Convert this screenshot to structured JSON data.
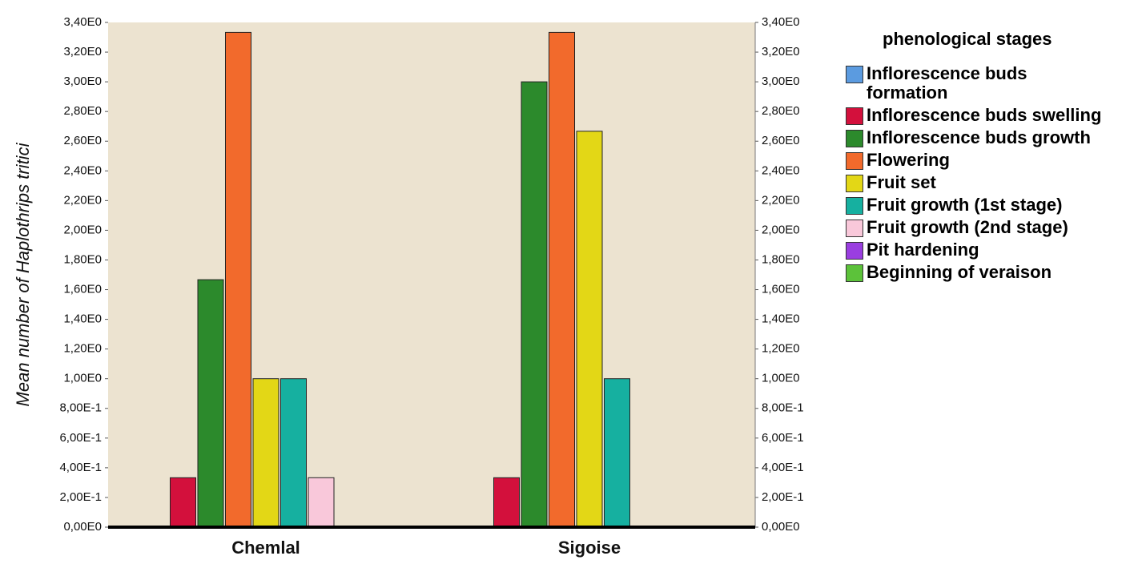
{
  "chart_data": {
    "type": "bar",
    "y_label": "Mean number of Haplothrips tritici",
    "legend_title": "phenological stages",
    "legend": "right",
    "categories": [
      "Chemlal",
      "Sigoise"
    ],
    "ylim": [
      0,
      3.4
    ],
    "yticks": [
      {
        "value": 0,
        "label": "0,00E0"
      },
      {
        "value": 0.2,
        "label": "2,00E-1"
      },
      {
        "value": 0.4,
        "label": "4,00E-1"
      },
      {
        "value": 0.6,
        "label": "6,00E-1"
      },
      {
        "value": 0.8,
        "label": "8,00E-1"
      },
      {
        "value": 1,
        "label": "1,00E0"
      },
      {
        "value": 1.2,
        "label": "1,20E0"
      },
      {
        "value": 1.4,
        "label": "1,40E0"
      },
      {
        "value": 1.6,
        "label": "1,60E0"
      },
      {
        "value": 1.8,
        "label": "1,80E0"
      },
      {
        "value": 2,
        "label": "2,00E0"
      },
      {
        "value": 2.2,
        "label": "2,20E0"
      },
      {
        "value": 2.4,
        "label": "2,40E0"
      },
      {
        "value": 2.6,
        "label": "2,60E0"
      },
      {
        "value": 2.8,
        "label": "2,80E0"
      },
      {
        "value": 3,
        "label": "3,00E0"
      },
      {
        "value": 3.2,
        "label": "3,20E0"
      },
      {
        "value": 3.4,
        "label": "3,40E0"
      }
    ],
    "y2lim": [
      0,
      3.4
    ],
    "y2ticks": [
      {
        "value": 0,
        "label": "0,00E0"
      },
      {
        "value": 0.2,
        "label": "2,00E-1"
      },
      {
        "value": 0.4,
        "label": "4,00E-1"
      },
      {
        "value": 0.6,
        "label": "6,00E-1"
      },
      {
        "value": 0.8,
        "label": "8,00E-1"
      },
      {
        "value": 1,
        "label": "1,00E0"
      },
      {
        "value": 1.2,
        "label": "1,20E0"
      },
      {
        "value": 1.4,
        "label": "1,40E0"
      },
      {
        "value": 1.6,
        "label": "1,60E0"
      },
      {
        "value": 1.8,
        "label": "1,80E0"
      },
      {
        "value": 2,
        "label": "2,00E0"
      },
      {
        "value": 2.2,
        "label": "2,20E0"
      },
      {
        "value": 2.4,
        "label": "2,40E0"
      },
      {
        "value": 2.6,
        "label": "2,60E0"
      },
      {
        "value": 2.8,
        "label": "2,80E0"
      },
      {
        "value": 3,
        "label": "3,00E0"
      },
      {
        "value": 3.2,
        "label": "3,20E0"
      },
      {
        "value": 3.4,
        "label": "3,40E0"
      }
    ],
    "series": [
      {
        "name": "Inflorescence buds formation",
        "color": "#5b9be0",
        "values": [
          0,
          0
        ]
      },
      {
        "name": "Inflorescence buds swelling",
        "color": "#d3103c",
        "values": [
          0.333,
          0.333
        ]
      },
      {
        "name": "Inflorescence buds growth",
        "color": "#2c8a2c",
        "values": [
          1.667,
          3.0
        ]
      },
      {
        "name": "Flowering",
        "color": "#f26a2c",
        "values": [
          3.333,
          3.333
        ]
      },
      {
        "name": "Fruit set",
        "color": "#e3d716",
        "values": [
          1.0,
          2.667
        ]
      },
      {
        "name": "Fruit growth (1st stage)",
        "color": "#16b0a0",
        "values": [
          1.0,
          1.0
        ]
      },
      {
        "name": "Fruit growth (2nd  stage)",
        "color": "#f9c8da",
        "values": [
          0.333,
          0
        ]
      },
      {
        "name": "Pit hardening",
        "color": "#9a3ee0",
        "values": [
          0,
          0
        ]
      },
      {
        "name": "Beginning of veraison",
        "color": "#5cc23a",
        "values": [
          0,
          0
        ]
      }
    ]
  }
}
